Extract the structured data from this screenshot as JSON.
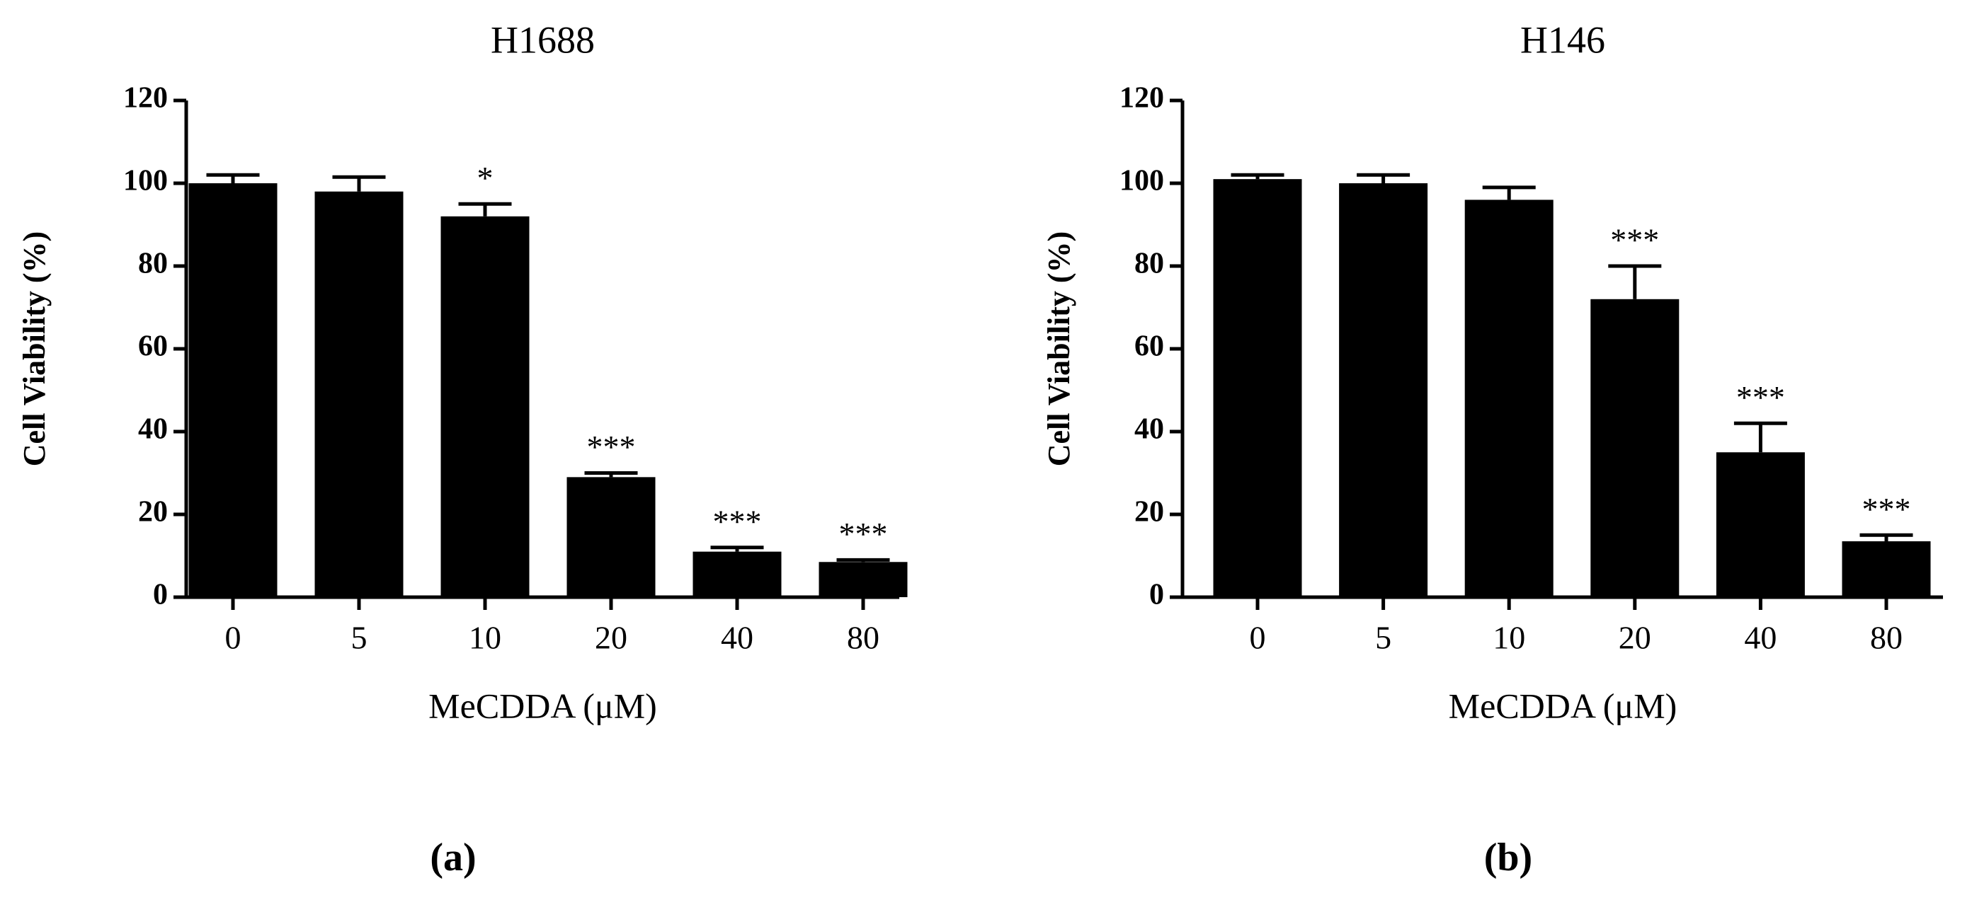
{
  "chart_data": [
    {
      "type": "bar",
      "title": "H1688",
      "x_label": "MeCDDA (μM)",
      "y_label": "Cell Viability (%)",
      "panel_label": "(a)",
      "categories": [
        "0",
        "5",
        "10",
        "20",
        "40",
        "80"
      ],
      "values": [
        100,
        98,
        92,
        29,
        11,
        8.5
      ],
      "errors": [
        2,
        3.5,
        3,
        1,
        1,
        0.5
      ],
      "annotations": [
        null,
        null,
        "*",
        "***",
        "***",
        "***"
      ],
      "color": "#000000",
      "ylim": [
        0,
        120
      ],
      "yticks": [
        0,
        20,
        40,
        60,
        80,
        100,
        120
      ]
    },
    {
      "type": "bar",
      "title": "H146",
      "x_label": "MeCDDA (μM)",
      "y_label": "Cell Viability (%)",
      "panel_label": "(b)",
      "categories": [
        "0",
        "5",
        "10",
        "20",
        "40",
        "80"
      ],
      "values": [
        101,
        100,
        96,
        72,
        35,
        13.5
      ],
      "errors": [
        1,
        2,
        3,
        8,
        7,
        1.5
      ],
      "annotations": [
        null,
        null,
        null,
        "***",
        "***",
        "***"
      ],
      "color": "#000000",
      "ylim": [
        0,
        120
      ],
      "yticks": [
        0,
        20,
        40,
        60,
        80,
        100,
        120
      ]
    }
  ]
}
